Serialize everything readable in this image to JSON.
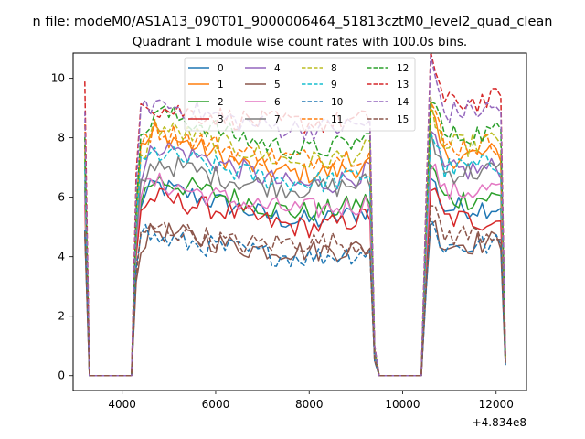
{
  "chart_data": {
    "type": "line",
    "suptitle": "n file: modeM0/AS1A13_090T01_9000006464_51813cztM0_level2_quad_clean",
    "title": "Quadrant 1 module wise count rates with 100.0s bins.",
    "xlabel": "",
    "ylabel": "",
    "x_offset_label": "+4.834e8",
    "xlim": [
      2950,
      12650
    ],
    "ylim": [
      -0.5,
      10.85
    ],
    "xticks": [
      4000,
      6000,
      8000,
      10000,
      12000
    ],
    "xtick_labels": [
      "4000",
      "6000",
      "8000",
      "10000",
      "12000"
    ],
    "yticks": [
      0,
      2,
      4,
      6,
      8,
      10
    ],
    "ytick_labels": [
      "0",
      "2",
      "4",
      "6",
      "8",
      "10"
    ],
    "legend_position": "top-center",
    "bin_width_s": 100,
    "segments": [
      {
        "start": 3200,
        "end": 9400
      },
      {
        "start": 10400,
        "end": 12200
      }
    ],
    "zero_gaps": [
      {
        "start": 3300,
        "end": 4200
      },
      {
        "start": 9500,
        "end": 10400
      }
    ],
    "series": [
      {
        "name": "0",
        "color": "#1f77b4",
        "dash": "solid",
        "levels": [
          5.8,
          6.4,
          5.6,
          5.2,
          5.6,
          5.7
        ]
      },
      {
        "name": "1",
        "color": "#ff7f0e",
        "dash": "solid",
        "levels": [
          7.6,
          8.2,
          7.1,
          6.8,
          7.3,
          7.5
        ]
      },
      {
        "name": "2",
        "color": "#2ca02c",
        "dash": "solid",
        "levels": [
          6.0,
          6.6,
          5.9,
          5.5,
          5.9,
          6.0
        ]
      },
      {
        "name": "3",
        "color": "#d62728",
        "dash": "solid",
        "levels": [
          5.6,
          6.0,
          5.4,
          5.0,
          5.3,
          5.2
        ]
      },
      {
        "name": "4",
        "color": "#9467bd",
        "dash": "solid",
        "levels": [
          6.6,
          7.8,
          6.9,
          6.4,
          6.8,
          7.0
        ]
      },
      {
        "name": "5",
        "color": "#8c564b",
        "dash": "solid",
        "levels": [
          4.4,
          4.9,
          4.3,
          4.2,
          4.4,
          4.5
        ]
      },
      {
        "name": "6",
        "color": "#e377c2",
        "dash": "solid",
        "levels": [
          6.2,
          6.5,
          5.8,
          5.6,
          6.1,
          6.3
        ]
      },
      {
        "name": "7",
        "color": "#7f7f7f",
        "dash": "solid",
        "levels": [
          6.4,
          7.2,
          6.5,
          6.3,
          6.8,
          6.9
        ]
      },
      {
        "name": "8",
        "color": "#bcbd22",
        "dash": "dashed",
        "levels": [
          7.2,
          8.4,
          7.6,
          7.2,
          7.6,
          7.9
        ]
      },
      {
        "name": "9",
        "color": "#17becf",
        "dash": "dashed",
        "levels": [
          7.0,
          7.5,
          6.8,
          6.5,
          6.9,
          7.1
        ]
      },
      {
        "name": "10",
        "color": "#1f77b4",
        "dash": "dashed",
        "levels": [
          5.0,
          4.6,
          4.2,
          4.0,
          4.3,
          4.4
        ]
      },
      {
        "name": "11",
        "color": "#ff7f0e",
        "dash": "dashed",
        "levels": [
          8.0,
          8.3,
          7.5,
          7.3,
          7.7,
          7.8
        ]
      },
      {
        "name": "12",
        "color": "#2ca02c",
        "dash": "dashed",
        "levels": [
          7.8,
          8.9,
          8.0,
          7.6,
          8.0,
          8.2
        ]
      },
      {
        "name": "13",
        "color": "#d62728",
        "dash": "dashed",
        "levels": [
          9.5,
          9.0,
          8.6,
          8.5,
          9.1,
          9.3
        ]
      },
      {
        "name": "14",
        "color": "#9467bd",
        "dash": "dashed",
        "levels": [
          8.8,
          9.2,
          8.5,
          8.3,
          8.8,
          9.0
        ]
      },
      {
        "name": "15",
        "color": "#8c564b",
        "dash": "dashed",
        "levels": [
          4.6,
          5.0,
          4.4,
          4.5,
          4.7,
          4.8
        ]
      }
    ]
  }
}
